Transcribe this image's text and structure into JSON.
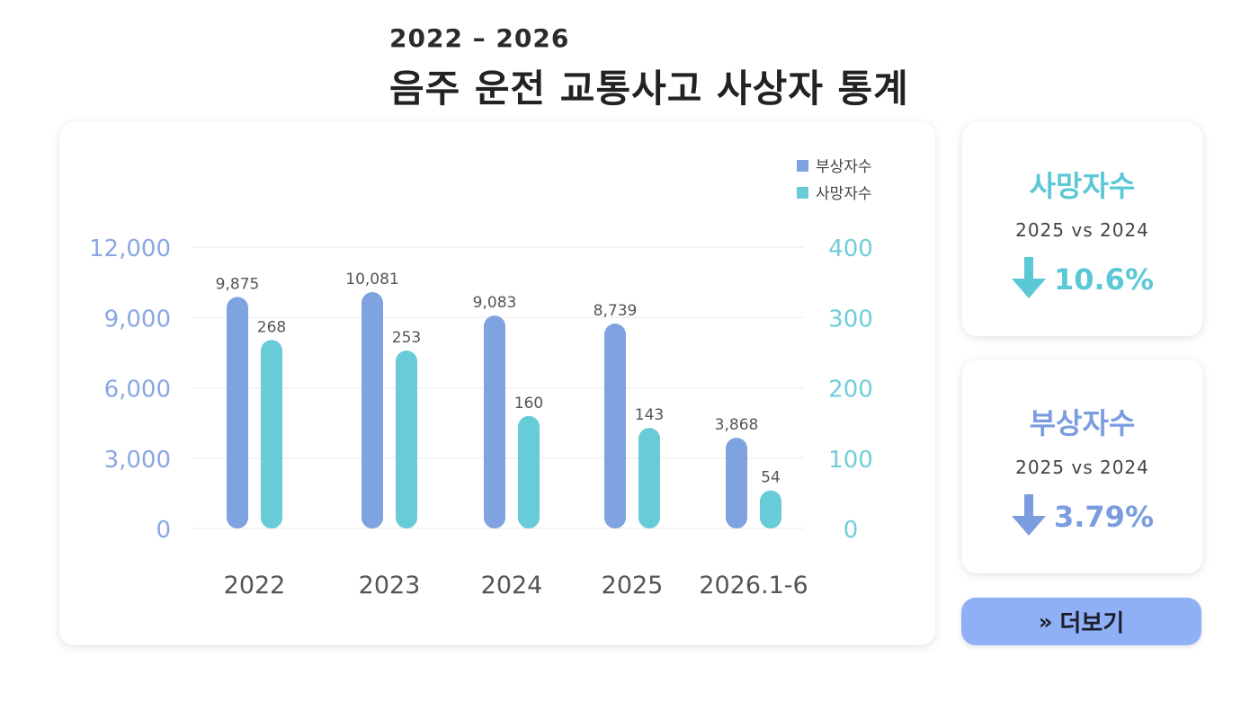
{
  "header": {
    "subtitle": "2022 – 2026",
    "title": "음주 운전 교통사고 사상자 통계"
  },
  "colors": {
    "injury": "#7fa2e0",
    "death": "#67ccd8",
    "left_axis": "#8aa7e3",
    "right_axis": "#70ced9",
    "category_text": "#555555",
    "button": "#90b0f6"
  },
  "chart_data": {
    "type": "bar",
    "categories": [
      "2022",
      "2023",
      "2024",
      "2025",
      "2026.1-6"
    ],
    "series": [
      {
        "name": "부상자수",
        "axis": "left",
        "values": [
          9875,
          10081,
          9083,
          8739,
          3868
        ],
        "labels": [
          "9,875",
          "10,081",
          "9,083",
          "8,739",
          "3,868"
        ]
      },
      {
        "name": "사망자수",
        "axis": "right",
        "values": [
          268,
          253,
          160,
          143,
          54
        ],
        "labels": [
          "268",
          "253",
          "160",
          "143",
          "54"
        ]
      }
    ],
    "y_left": {
      "ticks": [
        "0",
        "3,000",
        "6,000",
        "9,000",
        "12,000"
      ],
      "range": [
        0,
        12000
      ]
    },
    "y_right": {
      "ticks": [
        "0",
        "100",
        "200",
        "300",
        "400"
      ],
      "range": [
        0,
        400
      ]
    },
    "legend_position": "top-right",
    "grid": true
  },
  "stats": {
    "death": {
      "title": "사망자수",
      "compare": "2025  vs  2024",
      "value": "10.6%",
      "direction": "down",
      "icon": "arrow-down-icon"
    },
    "injury": {
      "title": "부상자수",
      "compare": "2025  vs  2024",
      "value": "3.79%",
      "direction": "down",
      "icon": "arrow-down-icon"
    }
  },
  "more_button": {
    "label": "더보기",
    "icon": "chevron-double-right-icon",
    "icon_glyph": "»"
  }
}
